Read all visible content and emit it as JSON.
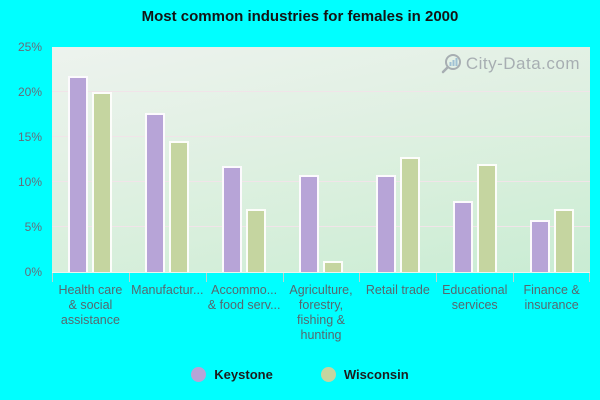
{
  "page": {
    "background": "#00ffff"
  },
  "chart_data": {
    "type": "bar",
    "title": "Most common industries for females in 2000",
    "categories": [
      "Health care & social assistance",
      "Manufacturing",
      "Accommodation & food services",
      "Agriculture, forestry, fishing & hunting",
      "Retail trade",
      "Educational services",
      "Finance & insurance"
    ],
    "categories_display": [
      [
        "Health care",
        "& social",
        "assistance"
      ],
      [
        "Manufactur..."
      ],
      [
        "Accommo...",
        "& food serv..."
      ],
      [
        "Agriculture,",
        "forestry,",
        "fishing &",
        "hunting"
      ],
      [
        "Retail trade"
      ],
      [
        "Educational",
        "services"
      ],
      [
        "Finance &",
        "insurance"
      ]
    ],
    "series": [
      {
        "name": "Keystone",
        "color": "#b7a4d7",
        "values": [
          21.8,
          17.7,
          11.8,
          10.8,
          10.8,
          7.9,
          5.8
        ]
      },
      {
        "name": "Wisconsin",
        "color": "#c5d5a0",
        "values": [
          20.0,
          14.6,
          7.0,
          1.2,
          12.8,
          12.0,
          7.0
        ]
      }
    ],
    "ylabel": "",
    "xlabel": "",
    "ylim": [
      0,
      25
    ],
    "ytick_step": 5,
    "ytick_labels": [
      "0%",
      "5%",
      "10%",
      "15%",
      "20%",
      "25%"
    ],
    "grid": true,
    "legend_position": "bottom"
  },
  "watermark": {
    "text": "City-Data.com"
  }
}
